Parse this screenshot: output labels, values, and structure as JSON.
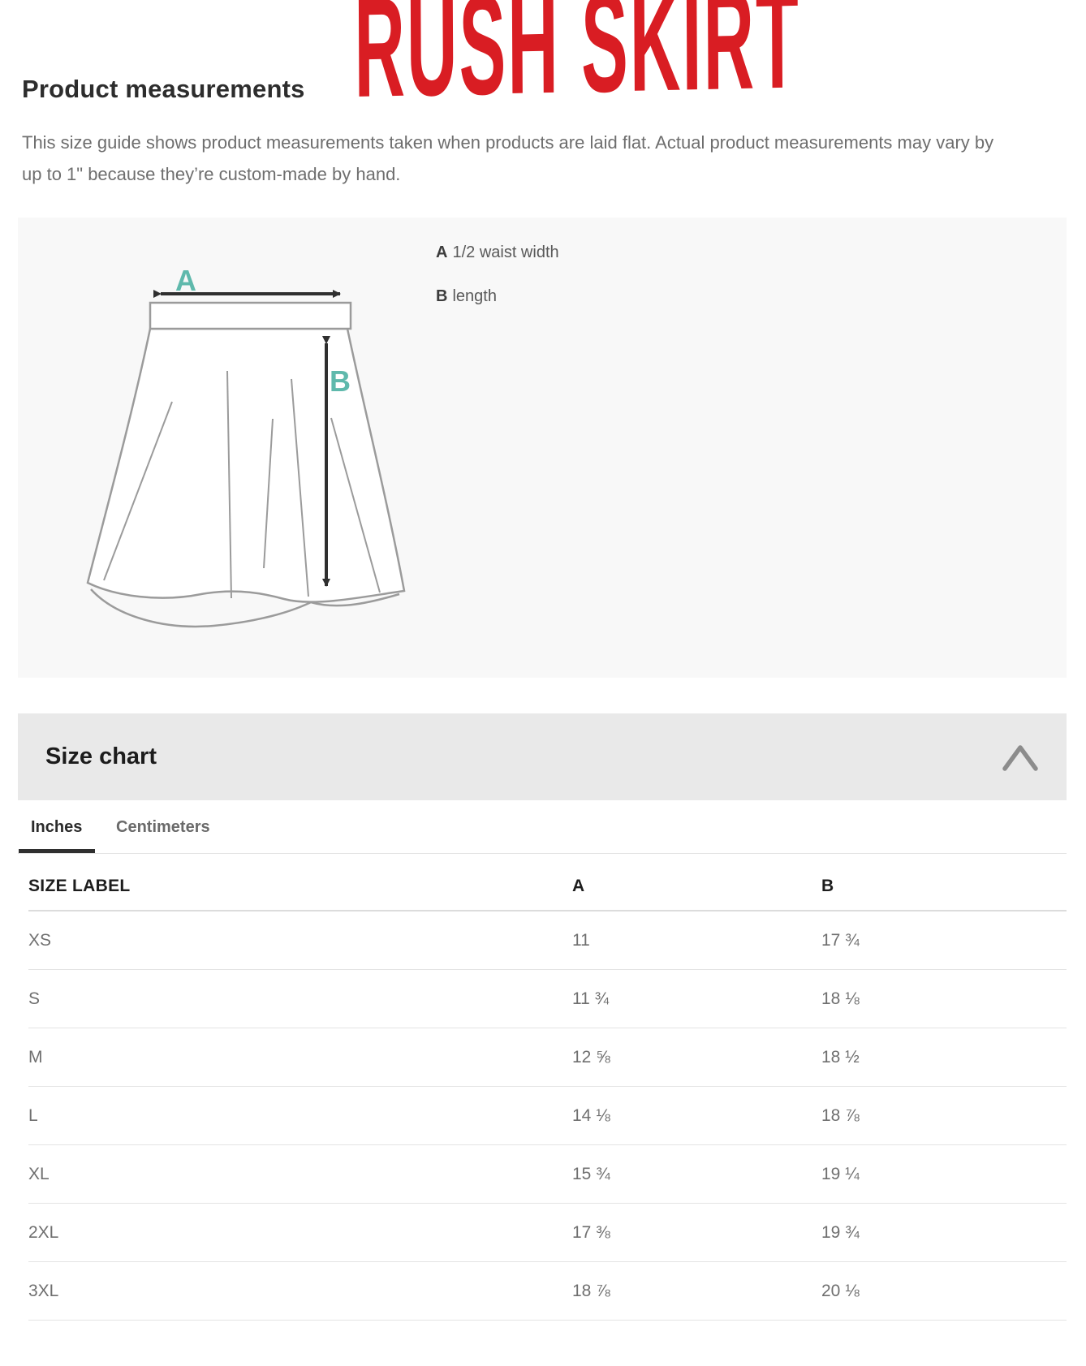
{
  "header": {
    "title": "Product measurements",
    "product_name": "RUSH SKIRT",
    "description": "This size guide shows product measurements taken when products are laid flat. Actual product measurements may vary by up to 1\" because they’re custom-made by hand."
  },
  "diagram": {
    "label_a": "A",
    "label_b": "B",
    "legend": [
      {
        "key": "A",
        "text": "1/2 waist width"
      },
      {
        "key": "B",
        "text": "length"
      }
    ]
  },
  "size_chart": {
    "title": "Size chart",
    "collapse_icon": "chevron-up",
    "tabs": [
      {
        "label": "Inches",
        "active": true
      },
      {
        "label": "Centimeters",
        "active": false
      }
    ],
    "columns": [
      "SIZE LABEL",
      "A",
      "B"
    ],
    "rows": [
      {
        "label": "XS",
        "a": "11",
        "b": "17 ¾"
      },
      {
        "label": "S",
        "a": "11 ¾",
        "b": "18 ⅛"
      },
      {
        "label": "M",
        "a": "12 ⅝",
        "b": "18 ½"
      },
      {
        "label": "L",
        "a": "14 ⅛",
        "b": "18 ⅞"
      },
      {
        "label": "XL",
        "a": "15 ¾",
        "b": "19 ¼"
      },
      {
        "label": "2XL",
        "a": "17 ⅜",
        "b": "19 ¾"
      },
      {
        "label": "3XL",
        "a": "18 ⅞",
        "b": "20 ⅛"
      }
    ]
  },
  "colors": {
    "product_name_red": "#d91d23",
    "diagram_accent_teal": "#5fb9ac",
    "panel_background": "#f8f8f8",
    "size_chart_bar_background": "#e9e9e9"
  }
}
